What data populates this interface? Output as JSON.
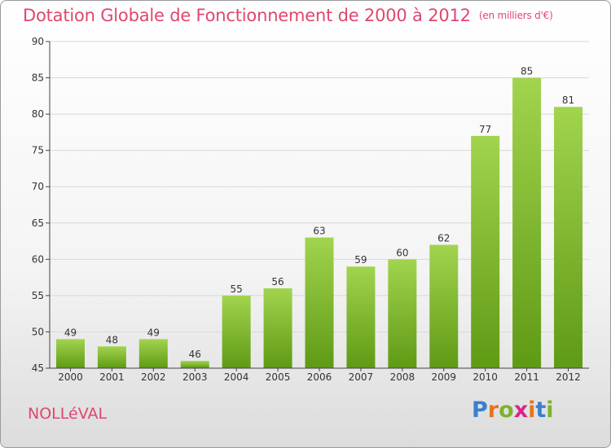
{
  "header": {
    "title": "Dotation Globale de Fonctionnement de 2000 à 2012",
    "subtitle": "(en milliers d'€)"
  },
  "commune": "NOLLéVAL",
  "logo": {
    "text": "Proxiti",
    "letters": [
      "P",
      "r",
      "o",
      "x",
      "i",
      "t",
      "i"
    ],
    "colors": [
      "#3a7fd0",
      "#e8731c",
      "#7cb32c",
      "#d6258a",
      "#e8731c",
      "#3a7fd0",
      "#7cb32c"
    ]
  },
  "colors": {
    "title": "#e0476f",
    "bar_top": "#a2d44e",
    "bar_bottom": "#5f9a15",
    "grid": "#d8d8d8",
    "axis": "#444444"
  },
  "chart_data": {
    "type": "bar",
    "categories": [
      "2000",
      "2001",
      "2002",
      "2003",
      "2004",
      "2005",
      "2006",
      "2007",
      "2008",
      "2009",
      "2010",
      "2011",
      "2012"
    ],
    "values": [
      49,
      48,
      49,
      46,
      55,
      56,
      63,
      59,
      60,
      62,
      77,
      85,
      81
    ],
    "title": "Dotation Globale de Fonctionnement de 2000 à 2012",
    "subtitle": "(en milliers d'€)",
    "xlabel": "",
    "ylabel": "",
    "ylim": [
      45,
      90
    ],
    "yticks": [
      45,
      50,
      55,
      60,
      65,
      70,
      75,
      80,
      85,
      90
    ],
    "grid": true,
    "legend": "none"
  }
}
